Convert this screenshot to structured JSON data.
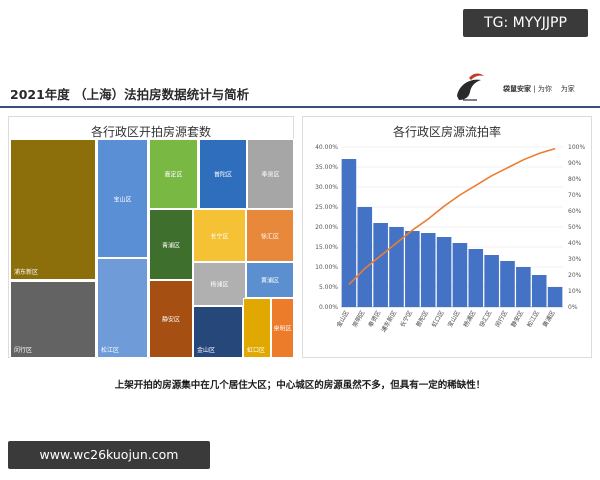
{
  "tg_badge": "TG: MYYJJPP",
  "header": {
    "title": "2021年度 （上海）法拍房数据统计与简析",
    "brand_name": "袋鼠安家",
    "brand_slogan_1": "为你",
    "brand_slogan_2": "为家"
  },
  "caption": "上架开拍的房源集中在几个居住大区；中心城区的房源虽然不多，但具有一定的稀缺性！",
  "url_badge": "www.wc26kuojun.com",
  "colors": {
    "bar": "#4472c4",
    "line": "#ed7d31",
    "header_rule": "#3a4e7a"
  },
  "chart_data": [
    {
      "type": "treemap",
      "title": "各行政区开拍房源套数",
      "items": [
        {
          "name": "浦东新区",
          "color": "#8c6e0a"
        },
        {
          "name": "闵行区",
          "color": "#636363"
        },
        {
          "name": "宝山区",
          "color": "#5a8fd6"
        },
        {
          "name": "松江区",
          "color": "#6f9bd8"
        },
        {
          "name": "嘉定区",
          "color": "#79b843"
        },
        {
          "name": "青浦区",
          "color": "#3f6f2c"
        },
        {
          "name": "静安区",
          "color": "#a54f12"
        },
        {
          "name": "普陀区",
          "color": "#2f6ebd"
        },
        {
          "name": "奉贤区",
          "color": "#a6a6a6"
        },
        {
          "name": "长宁区",
          "color": "#f4c234"
        },
        {
          "name": "徐汇区",
          "color": "#e8883a"
        },
        {
          "name": "杨浦区",
          "color": "#b0b0b0"
        },
        {
          "name": "黄浦区",
          "color": "#5b8fd0"
        },
        {
          "name": "金山区",
          "color": "#26477a"
        },
        {
          "name": "虹口区",
          "color": "#e0a800"
        },
        {
          "name": "崇明区",
          "color": "#ec7b2a"
        }
      ]
    },
    {
      "type": "bar",
      "title": "各行政区房源流拍率",
      "categories": [
        "金山区",
        "崇明区",
        "奉贤区",
        "浦东新区",
        "长宁区",
        "普陀区",
        "虹口区",
        "宝山区",
        "杨浦区",
        "徐汇区",
        "闵行区",
        "静安区",
        "松江区",
        "黄浦区"
      ],
      "series": [
        {
          "values": [
            0.37,
            0.25,
            0.21,
            0.2,
            0.19,
            0.185,
            0.175,
            0.16,
            0.145,
            0.13,
            0.115,
            0.1,
            0.08,
            0.05
          ]
        },
        {
          "type": "line",
          "axis": "right",
          "values": [
            0.14,
            0.24,
            0.32,
            0.4,
            0.48,
            0.55,
            0.63,
            0.7,
            0.76,
            0.82,
            0.87,
            0.92,
            0.96,
            0.99
          ]
        }
      ],
      "ylim": [
        0,
        0.4
      ],
      "y_ticks": [
        "0.00%",
        "5.00%",
        "10.00%",
        "15.00%",
        "20.00%",
        "25.00%",
        "30.00%",
        "35.00%",
        "40.00%"
      ],
      "y2lim": [
        0,
        1.0
      ],
      "y2_ticks": [
        "0%",
        "10%",
        "20%",
        "30%",
        "40%",
        "50%",
        "60%",
        "70%",
        "80%",
        "90%",
        "100%"
      ]
    }
  ]
}
